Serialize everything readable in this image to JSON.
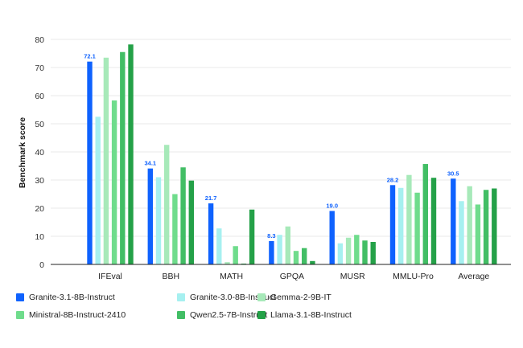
{
  "chart_data": {
    "type": "bar",
    "ylabel": "Benchmark score",
    "ylim": [
      0,
      80
    ],
    "yticks": [
      0,
      10,
      20,
      30,
      40,
      50,
      60,
      70,
      80
    ],
    "grid": true,
    "legend": "bottom",
    "categories": [
      "IFEval",
      "BBH",
      "MATH",
      "GPQA",
      "MUSR",
      "MMLU-Pro",
      "Average"
    ],
    "series": [
      {
        "name": "Granite-3.1-8B-Instruct",
        "color": "#0f62fe",
        "values": [
          72.1,
          34.1,
          21.7,
          8.3,
          19.0,
          28.2,
          30.5
        ],
        "labels": [
          "72.1",
          "34.1",
          "21.7",
          "8.3",
          "19.0",
          "28.2",
          "30.5"
        ]
      },
      {
        "name": "Granite-3.0-8B-Instruct",
        "color": "#a6f0f0",
        "values": [
          52.5,
          31.0,
          12.8,
          10.5,
          7.5,
          27.2,
          22.5
        ]
      },
      {
        "name": "Gemma-2-9B-IT",
        "color": "#a7e9b9",
        "values": [
          73.5,
          42.5,
          0.8,
          13.5,
          9.5,
          31.8,
          27.8
        ]
      },
      {
        "name": "Ministral-8B-Instruct-2410",
        "color": "#6fdc8c",
        "values": [
          58.3,
          25.0,
          6.5,
          4.8,
          10.5,
          25.5,
          21.3
        ]
      },
      {
        "name": "Qwen2.5-7B-Instruct",
        "color": "#42be65",
        "values": [
          75.5,
          34.5,
          0.3,
          5.8,
          8.5,
          35.7,
          26.5
        ]
      },
      {
        "name": "Llama-3.1-8B-Instruct",
        "color": "#24a148",
        "values": [
          78.2,
          29.8,
          19.5,
          1.2,
          8.0,
          30.8,
          27.0
        ]
      }
    ]
  }
}
